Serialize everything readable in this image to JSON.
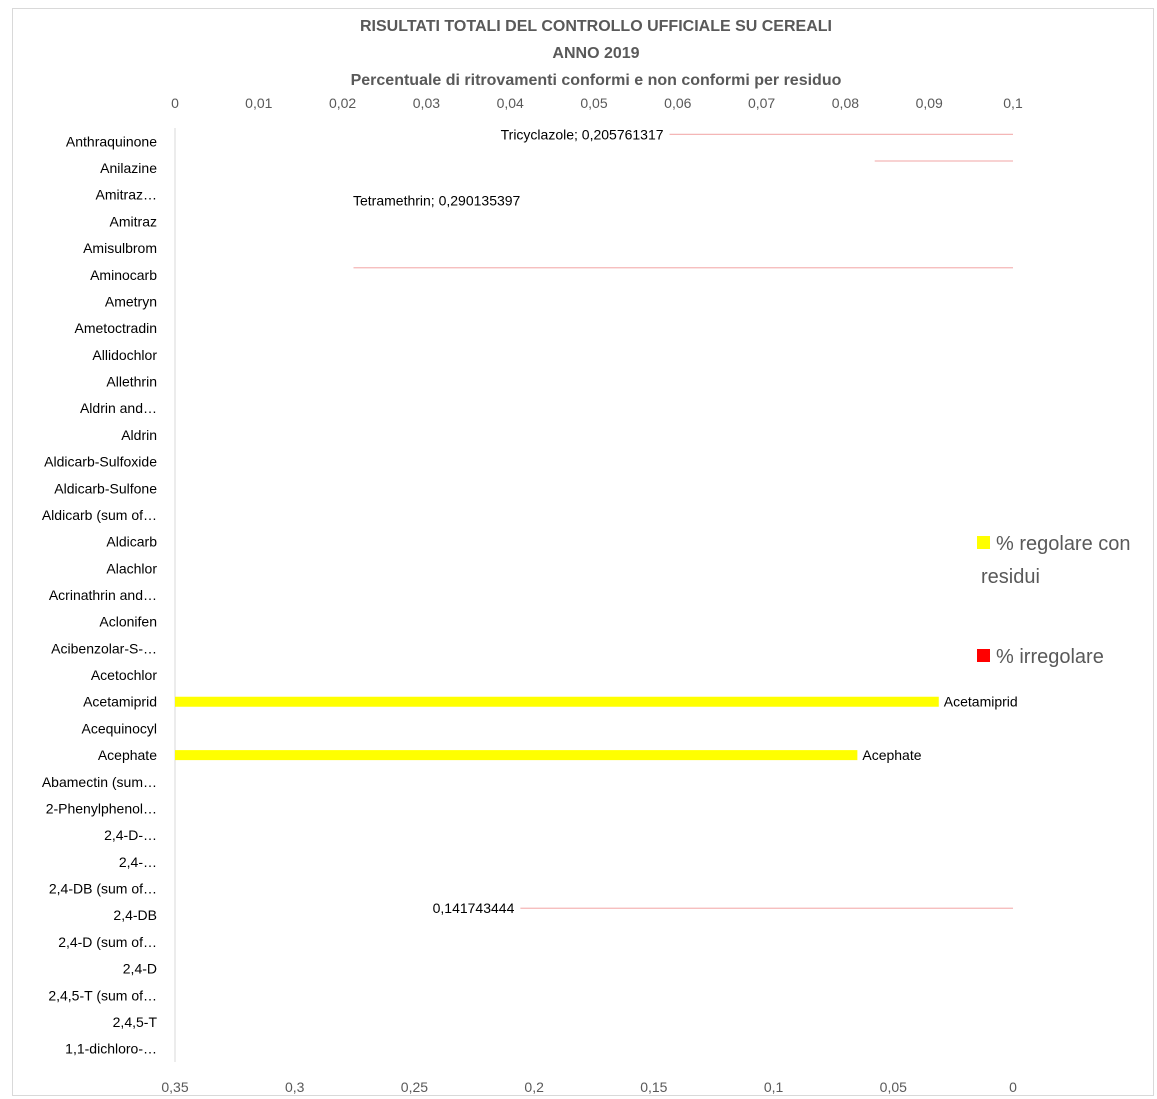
{
  "chart_data": {
    "type": "bar",
    "orientation": "horizontal",
    "title_lines": [
      "RISULTATI TOTALI DEL CONTROLLO UFFICIALE SU CEREALI",
      "ANNO 2019",
      "Percentuale di ritrovamenti conformi e non conformi per residuo"
    ],
    "top_axis": {
      "ticks": [
        "0",
        "0,01",
        "0,02",
        "0,03",
        "0,04",
        "0,05",
        "0,06",
        "0,07",
        "0,08",
        "0,09",
        "0,1"
      ],
      "range": [
        0,
        0.1
      ]
    },
    "bottom_axis": {
      "ticks": [
        "0,35",
        "0,3",
        "0,25",
        "0,2",
        "0,15",
        "0,1",
        "0,05",
        "0"
      ],
      "range": [
        0.35,
        0
      ],
      "reversed": true
    },
    "categories": [
      "Anthraquinone",
      "Anilazine",
      "Amitraz…",
      "Amitraz",
      "Amisulbrom",
      "Aminocarb",
      "Ametryn",
      "Ametoctradin",
      "Allidochlor",
      "Allethrin",
      "Aldrin and…",
      "Aldrin",
      "Aldicarb-Sulfoxide",
      "Aldicarb-Sulfone",
      "Aldicarb (sum of…",
      "Aldicarb",
      "Alachlor",
      "Acrinathrin and…",
      "Aclonifen",
      "Acibenzolar-S-…",
      "Acetochlor",
      "Acetamiprid",
      "Acequinocyl",
      "Acephate",
      "Abamectin (sum…",
      "2-Phenylphenol…",
      "2,4-D-…",
      "2,4-…",
      "2,4-DB (sum of…",
      "2,4-DB",
      "2,4-D (sum of…",
      "2,4-D",
      "2,4,5-T (sum of…",
      "2,4,5-T",
      "1,1-dichloro-…"
    ],
    "series": [
      {
        "name": "% regolare con residui",
        "color": "#FFFF00",
        "axis": "bottom",
        "bars": [
          {
            "category": "Acetamiprid",
            "value": 0.031,
            "label": "Acetamiprid"
          },
          {
            "category": "Acephate",
            "value": 0.065,
            "label": "Acephate"
          }
        ]
      },
      {
        "name": "% irregolare",
        "color": "#FF0000",
        "axis": "top",
        "marks": [
          {
            "category": "Anthraquinone",
            "value": 0.0583,
            "label": "Tricyclazole; 0,205761317"
          },
          {
            "category": "Anilazine",
            "value": 0.0835,
            "label": ""
          },
          {
            "category": "Amitraz…",
            "value": 0,
            "label": "Tetramethrin; 0,290135397"
          },
          {
            "category": "Aminocarb",
            "value": 0.0213,
            "label": ""
          },
          {
            "category": "2,4-DB",
            "value": 0.0405,
            "label": "0,141743444"
          }
        ]
      }
    ],
    "legend": {
      "placement": "right",
      "entries": [
        {
          "lines": [
            "% regolare con",
            "residui"
          ],
          "color": "#FFFF00"
        },
        {
          "lines": [
            "% irregolare"
          ],
          "color": "#FF0000"
        }
      ]
    }
  }
}
